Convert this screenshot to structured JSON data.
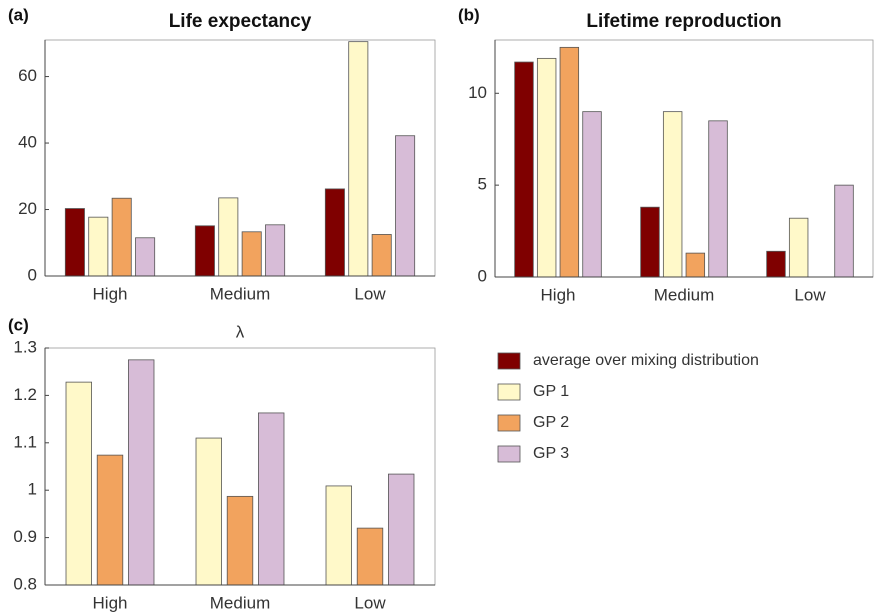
{
  "chart_data": [
    {
      "type": "bar",
      "panel_label": "(a)",
      "title": "Life expectancy",
      "categories": [
        "High",
        "Medium",
        "Low"
      ],
      "series": [
        {
          "name": "average over mixing distribution",
          "color": "#7f0000",
          "values": [
            20.3,
            15.1,
            26.2
          ]
        },
        {
          "name": "GP 1",
          "color": "#fff9c9",
          "values": [
            17.7,
            23.5,
            70.5
          ]
        },
        {
          "name": "GP 2",
          "color": "#f2a35e",
          "values": [
            23.4,
            13.3,
            12.5
          ]
        },
        {
          "name": "GP 3",
          "color": "#d7bcd7",
          "values": [
            11.5,
            15.4,
            42.2
          ]
        }
      ],
      "ylim": [
        0,
        71
      ],
      "yticks": [
        0,
        20,
        40,
        60
      ],
      "grid": false
    },
    {
      "type": "bar",
      "panel_label": "(b)",
      "title": "Lifetime reproduction",
      "categories": [
        "High",
        "Medium",
        "Low"
      ],
      "series": [
        {
          "color": "#7f0000",
          "values": [
            11.7,
            3.8,
            1.4
          ]
        },
        {
          "color": "#fff9c9",
          "values": [
            11.9,
            9.0,
            3.2
          ]
        },
        {
          "color": "#f2a35e",
          "values": [
            12.5,
            1.3,
            0
          ]
        },
        {
          "color": "#d7bcd7",
          "values": [
            9.0,
            8.5,
            5.0
          ]
        }
      ],
      "ylim": [
        0,
        12.9
      ],
      "yticks": [
        0,
        5,
        10
      ],
      "grid": false
    },
    {
      "type": "bar",
      "panel_label": "(c)",
      "title": "λ",
      "categories": [
        "High",
        "Medium",
        "Low"
      ],
      "series": [
        {
          "color": "#fff9c9",
          "values": [
            1.228,
            1.11,
            1.009
          ]
        },
        {
          "color": "#f2a35e",
          "values": [
            1.074,
            0.987,
            0.92
          ]
        },
        {
          "color": "#d7bcd7",
          "values": [
            1.275,
            1.163,
            1.034
          ]
        }
      ],
      "ylim": [
        0.8,
        1.3
      ],
      "yticks": [
        0.8,
        0.9,
        1,
        1.1,
        1.2,
        1.3
      ],
      "grid": false
    }
  ]
}
